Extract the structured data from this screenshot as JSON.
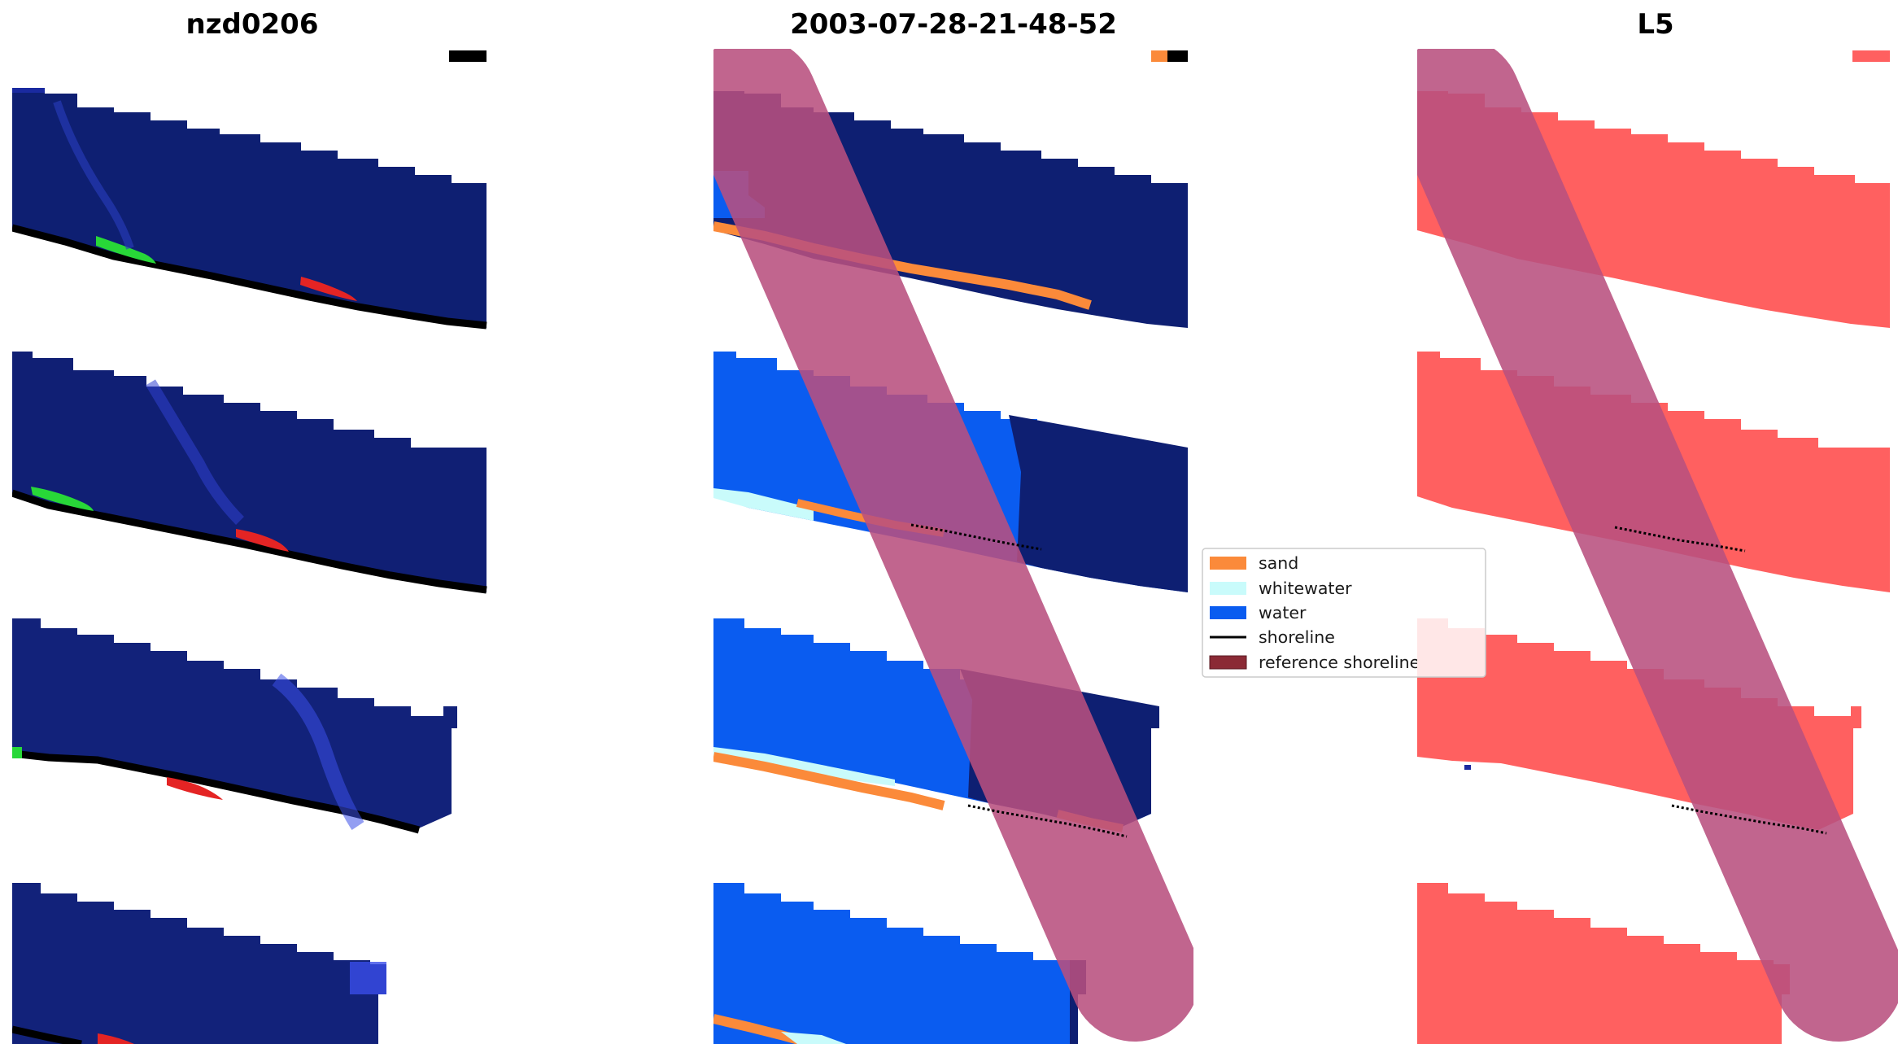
{
  "panels": [
    {
      "title": "nzd0206",
      "kind": "rgb"
    },
    {
      "title": "2003-07-28-21-48-52",
      "kind": "classified"
    },
    {
      "title": "L5",
      "kind": "mask"
    }
  ],
  "legend": {
    "items": [
      {
        "label": "sand",
        "color": "#fb8a3a",
        "type": "patch"
      },
      {
        "label": "whitewater",
        "color": "#c9fbfb",
        "type": "patch"
      },
      {
        "label": "water",
        "color": "#0a5cf0",
        "type": "patch"
      },
      {
        "label": "shoreline",
        "color": "#000000",
        "type": "line"
      },
      {
        "label": "reference shoreline",
        "color": "#8b2a35",
        "type": "patch"
      }
    ]
  },
  "colors": {
    "deep_water": "#0e1f72",
    "sand": "#fb8a3a",
    "whitewater": "#c9fbfb",
    "water": "#0a5cf0",
    "mask_red": "#ff6060",
    "buffer": "#b8507e",
    "green_glint": "#28d838",
    "red_glint": "#e42424"
  }
}
